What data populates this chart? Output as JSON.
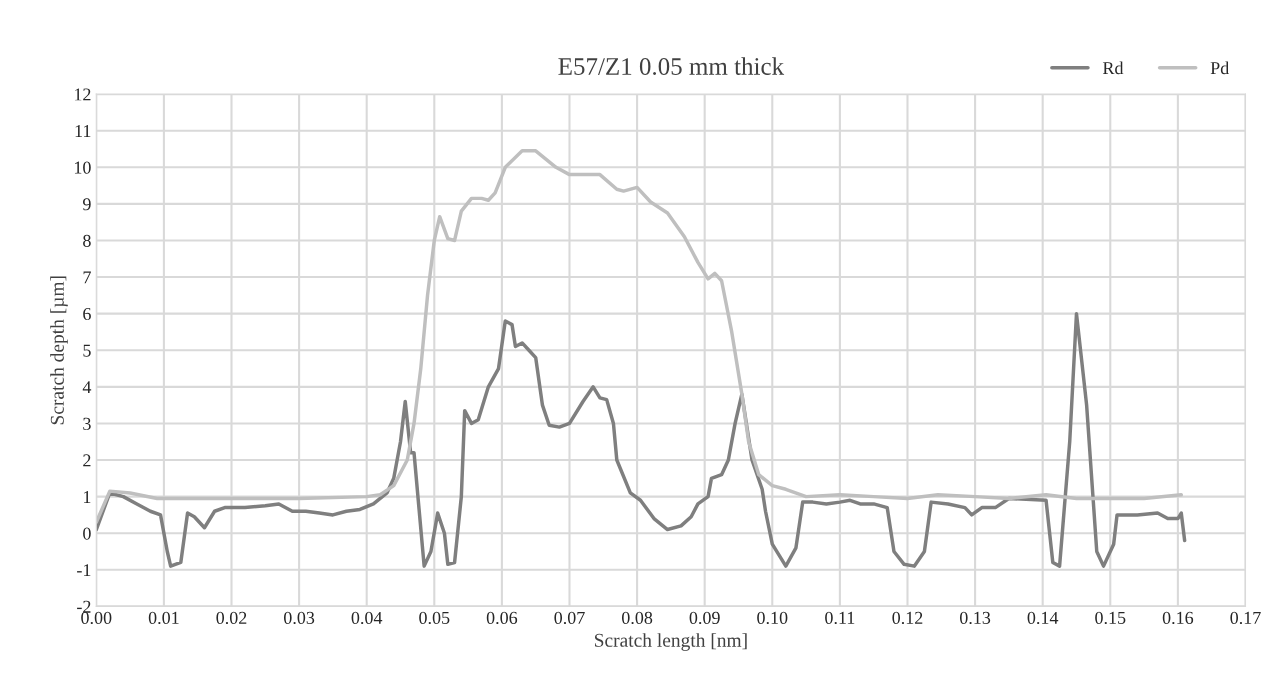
{
  "chart_data": {
    "type": "line",
    "title": "E57/Z1 0.05 mm thick",
    "xlabel": "Scratch length [nm]",
    "ylabel": "Scratch depth [µm]",
    "xlim": [
      0,
      0.17
    ],
    "xticks": [
      {
        "value": 0,
        "label": "0.00"
      },
      {
        "value": 0.01,
        "label": "0.01"
      },
      {
        "value": 0.02,
        "label": "0.02"
      },
      {
        "value": 0.03,
        "label": "0.03"
      },
      {
        "value": 0.04,
        "label": "0.04"
      },
      {
        "value": 0.05,
        "label": "0.05"
      },
      {
        "value": 0.06,
        "label": "0.06"
      },
      {
        "value": 0.07,
        "label": "0.07"
      },
      {
        "value": 0.08,
        "label": "0.08"
      },
      {
        "value": 0.09,
        "label": "0.09"
      },
      {
        "value": 0.1,
        "label": "0.10"
      },
      {
        "value": 0.11,
        "label": "0.11"
      },
      {
        "value": 0.12,
        "label": "0.12"
      },
      {
        "value": 0.13,
        "label": "0.13"
      },
      {
        "value": 0.14,
        "label": "0.14"
      },
      {
        "value": 0.15,
        "label": "0.15"
      },
      {
        "value": 0.16,
        "label": "0.16"
      },
      {
        "value": 0.17,
        "label": "0.17"
      }
    ],
    "ylim": [
      -2,
      12
    ],
    "yticks": [
      -2,
      -1,
      0,
      1,
      2,
      3,
      4,
      5,
      6,
      7,
      8,
      9,
      10,
      11,
      12
    ],
    "grid": true,
    "legend": "top right",
    "line_style": "solid",
    "marker": "none",
    "series": [
      {
        "name": "Rd",
        "color": "#7f7f7f",
        "x": [
          0.0,
          0.002,
          0.004,
          0.006,
          0.008,
          0.0095,
          0.0105,
          0.011,
          0.0125,
          0.0135,
          0.0145,
          0.016,
          0.0175,
          0.019,
          0.022,
          0.025,
          0.027,
          0.029,
          0.031,
          0.033,
          0.035,
          0.037,
          0.039,
          0.041,
          0.043,
          0.044,
          0.045,
          0.0457,
          0.0465,
          0.047,
          0.0485,
          0.0495,
          0.0505,
          0.0515,
          0.052,
          0.053,
          0.054,
          0.0545,
          0.0555,
          0.0565,
          0.058,
          0.0595,
          0.0605,
          0.0615,
          0.062,
          0.063,
          0.064,
          0.065,
          0.066,
          0.067,
          0.0685,
          0.07,
          0.072,
          0.0735,
          0.0745,
          0.0755,
          0.0765,
          0.077,
          0.079,
          0.0805,
          0.0825,
          0.0845,
          0.0865,
          0.088,
          0.089,
          0.0905,
          0.091,
          0.0925,
          0.0935,
          0.0945,
          0.0955,
          0.097,
          0.0985,
          0.099,
          0.1,
          0.102,
          0.1035,
          0.1045,
          0.106,
          0.108,
          0.11,
          0.1115,
          0.113,
          0.115,
          0.117,
          0.118,
          0.1195,
          0.121,
          0.1225,
          0.1235,
          0.126,
          0.1285,
          0.1295,
          0.131,
          0.133,
          0.135,
          0.1405,
          0.1415,
          0.1425,
          0.144,
          0.145,
          0.1465,
          0.148,
          0.149,
          0.1505,
          0.151,
          0.154,
          0.157,
          0.1585,
          0.16,
          0.1605,
          0.161
        ],
        "values": [
          0.1,
          1.1,
          1.0,
          0.8,
          0.6,
          0.5,
          -0.5,
          -0.9,
          -0.8,
          0.55,
          0.45,
          0.15,
          0.6,
          0.7,
          0.7,
          0.75,
          0.8,
          0.6,
          0.6,
          0.55,
          0.5,
          0.6,
          0.65,
          0.8,
          1.1,
          1.5,
          2.5,
          3.6,
          2.2,
          2.2,
          -0.9,
          -0.5,
          0.55,
          0,
          -0.85,
          -0.8,
          1.0,
          3.35,
          3.0,
          3.1,
          4.0,
          4.5,
          5.8,
          5.7,
          5.1,
          5.2,
          5.0,
          4.8,
          3.5,
          2.95,
          2.9,
          3.0,
          3.6,
          4.0,
          3.7,
          3.65,
          3.0,
          2.0,
          1.1,
          0.9,
          0.4,
          0.1,
          0.2,
          0.45,
          0.8,
          1.0,
          1.5,
          1.6,
          2.0,
          3.0,
          3.8,
          2.0,
          1.2,
          0.6,
          -0.3,
          -0.9,
          -0.4,
          0.85,
          0.85,
          0.8,
          0.85,
          0.9,
          0.8,
          0.8,
          0.7,
          -0.5,
          -0.85,
          -0.9,
          -0.5,
          0.85,
          0.8,
          0.7,
          0.5,
          0.7,
          0.7,
          0.95,
          0.9,
          -0.8,
          -0.9,
          2.5,
          6.0,
          3.5,
          -0.5,
          -0.9,
          -0.3,
          0.5,
          0.5,
          0.55,
          0.4,
          0.4,
          0.55,
          -0.2
        ]
      },
      {
        "name": "Pd",
        "color": "#bfbfbf",
        "x": [
          0.0,
          0.002,
          0.005,
          0.009,
          0.015,
          0.02,
          0.03,
          0.04,
          0.042,
          0.044,
          0.046,
          0.047,
          0.048,
          0.049,
          0.05,
          0.0508,
          0.052,
          0.053,
          0.054,
          0.0555,
          0.057,
          0.058,
          0.059,
          0.0605,
          0.063,
          0.065,
          0.068,
          0.07,
          0.072,
          0.0745,
          0.077,
          0.078,
          0.08,
          0.082,
          0.0845,
          0.087,
          0.089,
          0.0905,
          0.0915,
          0.0925,
          0.094,
          0.0955,
          0.0965,
          0.098,
          0.1,
          0.102,
          0.105,
          0.11,
          0.115,
          0.12,
          0.1245,
          0.13,
          0.135,
          0.1405,
          0.145,
          0.15,
          0.155,
          0.1605
        ],
        "values": [
          0.3,
          1.15,
          1.1,
          0.95,
          0.95,
          0.95,
          0.95,
          1.0,
          1.05,
          1.3,
          2.0,
          3.0,
          4.5,
          6.5,
          8.0,
          8.65,
          8.05,
          8.0,
          8.8,
          9.15,
          9.15,
          9.1,
          9.3,
          10.0,
          10.45,
          10.45,
          10.0,
          9.8,
          9.8,
          9.8,
          9.4,
          9.35,
          9.45,
          9.05,
          8.75,
          8.1,
          7.4,
          6.95,
          7.1,
          6.9,
          5.5,
          3.8,
          2.5,
          1.6,
          1.3,
          1.2,
          1.0,
          1.05,
          1.0,
          0.95,
          1.05,
          1.0,
          0.95,
          1.05,
          0.95,
          0.95,
          0.95,
          1.05
        ]
      }
    ]
  }
}
